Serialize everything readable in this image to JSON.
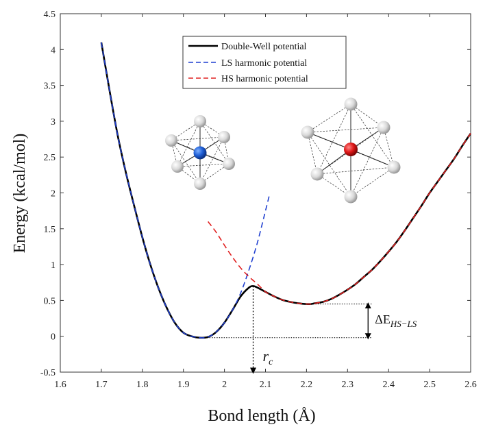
{
  "chart_data": {
    "type": "line",
    "xlabel": "Bond length (Å)",
    "ylabel": "Energy (kcal/mol)",
    "xlim": [
      1.6,
      2.6
    ],
    "ylim": [
      -0.5,
      4.5
    ],
    "xticks": [
      "1.6",
      "1.7",
      "1.8",
      "1.9",
      "2",
      "2.1",
      "2.2",
      "2.3",
      "2.4",
      "2.5",
      "2.6"
    ],
    "yticks": [
      "-0.5",
      "0",
      "0.5",
      "1",
      "1.5",
      "2",
      "2.5",
      "3",
      "3.5",
      "4",
      "4.5"
    ],
    "grid": false,
    "legend": "top-center",
    "series": [
      {
        "name": "Double-Well potential",
        "style": "solid",
        "color": "#000000",
        "x": [
          1.7,
          1.72,
          1.74,
          1.76,
          1.78,
          1.8,
          1.82,
          1.84,
          1.86,
          1.88,
          1.9,
          1.92,
          1.94,
          1.96,
          1.98,
          2.0,
          2.02,
          2.04,
          2.06,
          2.07,
          2.08,
          2.1,
          2.12,
          2.14,
          2.16,
          2.18,
          2.2,
          2.21,
          2.22,
          2.24,
          2.26,
          2.28,
          2.3,
          2.32,
          2.34,
          2.36,
          2.38,
          2.4,
          2.42,
          2.44,
          2.46,
          2.48,
          2.5,
          2.52,
          2.54,
          2.56,
          2.58,
          2.6
        ],
        "y": [
          4.1,
          3.43,
          2.8,
          2.28,
          1.82,
          1.38,
          0.99,
          0.66,
          0.39,
          0.18,
          0.05,
          0.0,
          -0.02,
          -0.01,
          0.06,
          0.19,
          0.37,
          0.56,
          0.68,
          0.7,
          0.68,
          0.62,
          0.56,
          0.51,
          0.48,
          0.46,
          0.45,
          0.45,
          0.46,
          0.48,
          0.52,
          0.58,
          0.65,
          0.73,
          0.83,
          0.93,
          1.05,
          1.18,
          1.32,
          1.48,
          1.65,
          1.82,
          2.0,
          2.16,
          2.32,
          2.48,
          2.66,
          2.83
        ]
      },
      {
        "name": "LS harmonic potential",
        "style": "dashed",
        "color": "#1f3fd0",
        "x": [
          1.7,
          1.72,
          1.74,
          1.76,
          1.78,
          1.8,
          1.82,
          1.84,
          1.86,
          1.88,
          1.9,
          1.92,
          1.94,
          1.96,
          1.98,
          2.0,
          2.02,
          2.04,
          2.06,
          2.08,
          2.1,
          2.11
        ],
        "y": [
          4.1,
          3.43,
          2.8,
          2.28,
          1.82,
          1.38,
          0.99,
          0.66,
          0.39,
          0.18,
          0.05,
          0.0,
          -0.02,
          -0.01,
          0.06,
          0.19,
          0.37,
          0.61,
          0.93,
          1.3,
          1.75,
          1.98
        ]
      },
      {
        "name": "HS harmonic potential",
        "style": "dashed",
        "color": "#e02020",
        "x": [
          1.96,
          1.98,
          2.0,
          2.02,
          2.04,
          2.06,
          2.08,
          2.1,
          2.12,
          2.14,
          2.16,
          2.18,
          2.2,
          2.21,
          2.22,
          2.24,
          2.26,
          2.28,
          2.3,
          2.32,
          2.34,
          2.36,
          2.38,
          2.4,
          2.42,
          2.44,
          2.46,
          2.48,
          2.5,
          2.52,
          2.54,
          2.56,
          2.58,
          2.6
        ],
        "y": [
          1.6,
          1.45,
          1.27,
          1.1,
          0.95,
          0.83,
          0.73,
          0.62,
          0.56,
          0.51,
          0.48,
          0.46,
          0.45,
          0.45,
          0.46,
          0.48,
          0.52,
          0.58,
          0.65,
          0.73,
          0.83,
          0.93,
          1.05,
          1.18,
          1.32,
          1.48,
          1.65,
          1.82,
          2.0,
          2.16,
          2.32,
          2.48,
          2.66,
          2.83
        ]
      }
    ],
    "annotations": {
      "delta_label": "ΔE",
      "delta_subscript": "HS−LS",
      "rc_label": "r",
      "rc_subscript": "c",
      "ls_min": {
        "x": 1.94,
        "y": -0.02
      },
      "hs_min": {
        "x": 2.21,
        "y": 0.45
      },
      "barrier": {
        "x": 2.07,
        "y": 0.7
      },
      "arrow_x": 2.35,
      "rc_arrow_bottom_y": -0.5
    }
  },
  "colors": {
    "ls_center": "#1f5fd6",
    "hs_center": "#e01818",
    "ligand": "#d8d8d8"
  }
}
